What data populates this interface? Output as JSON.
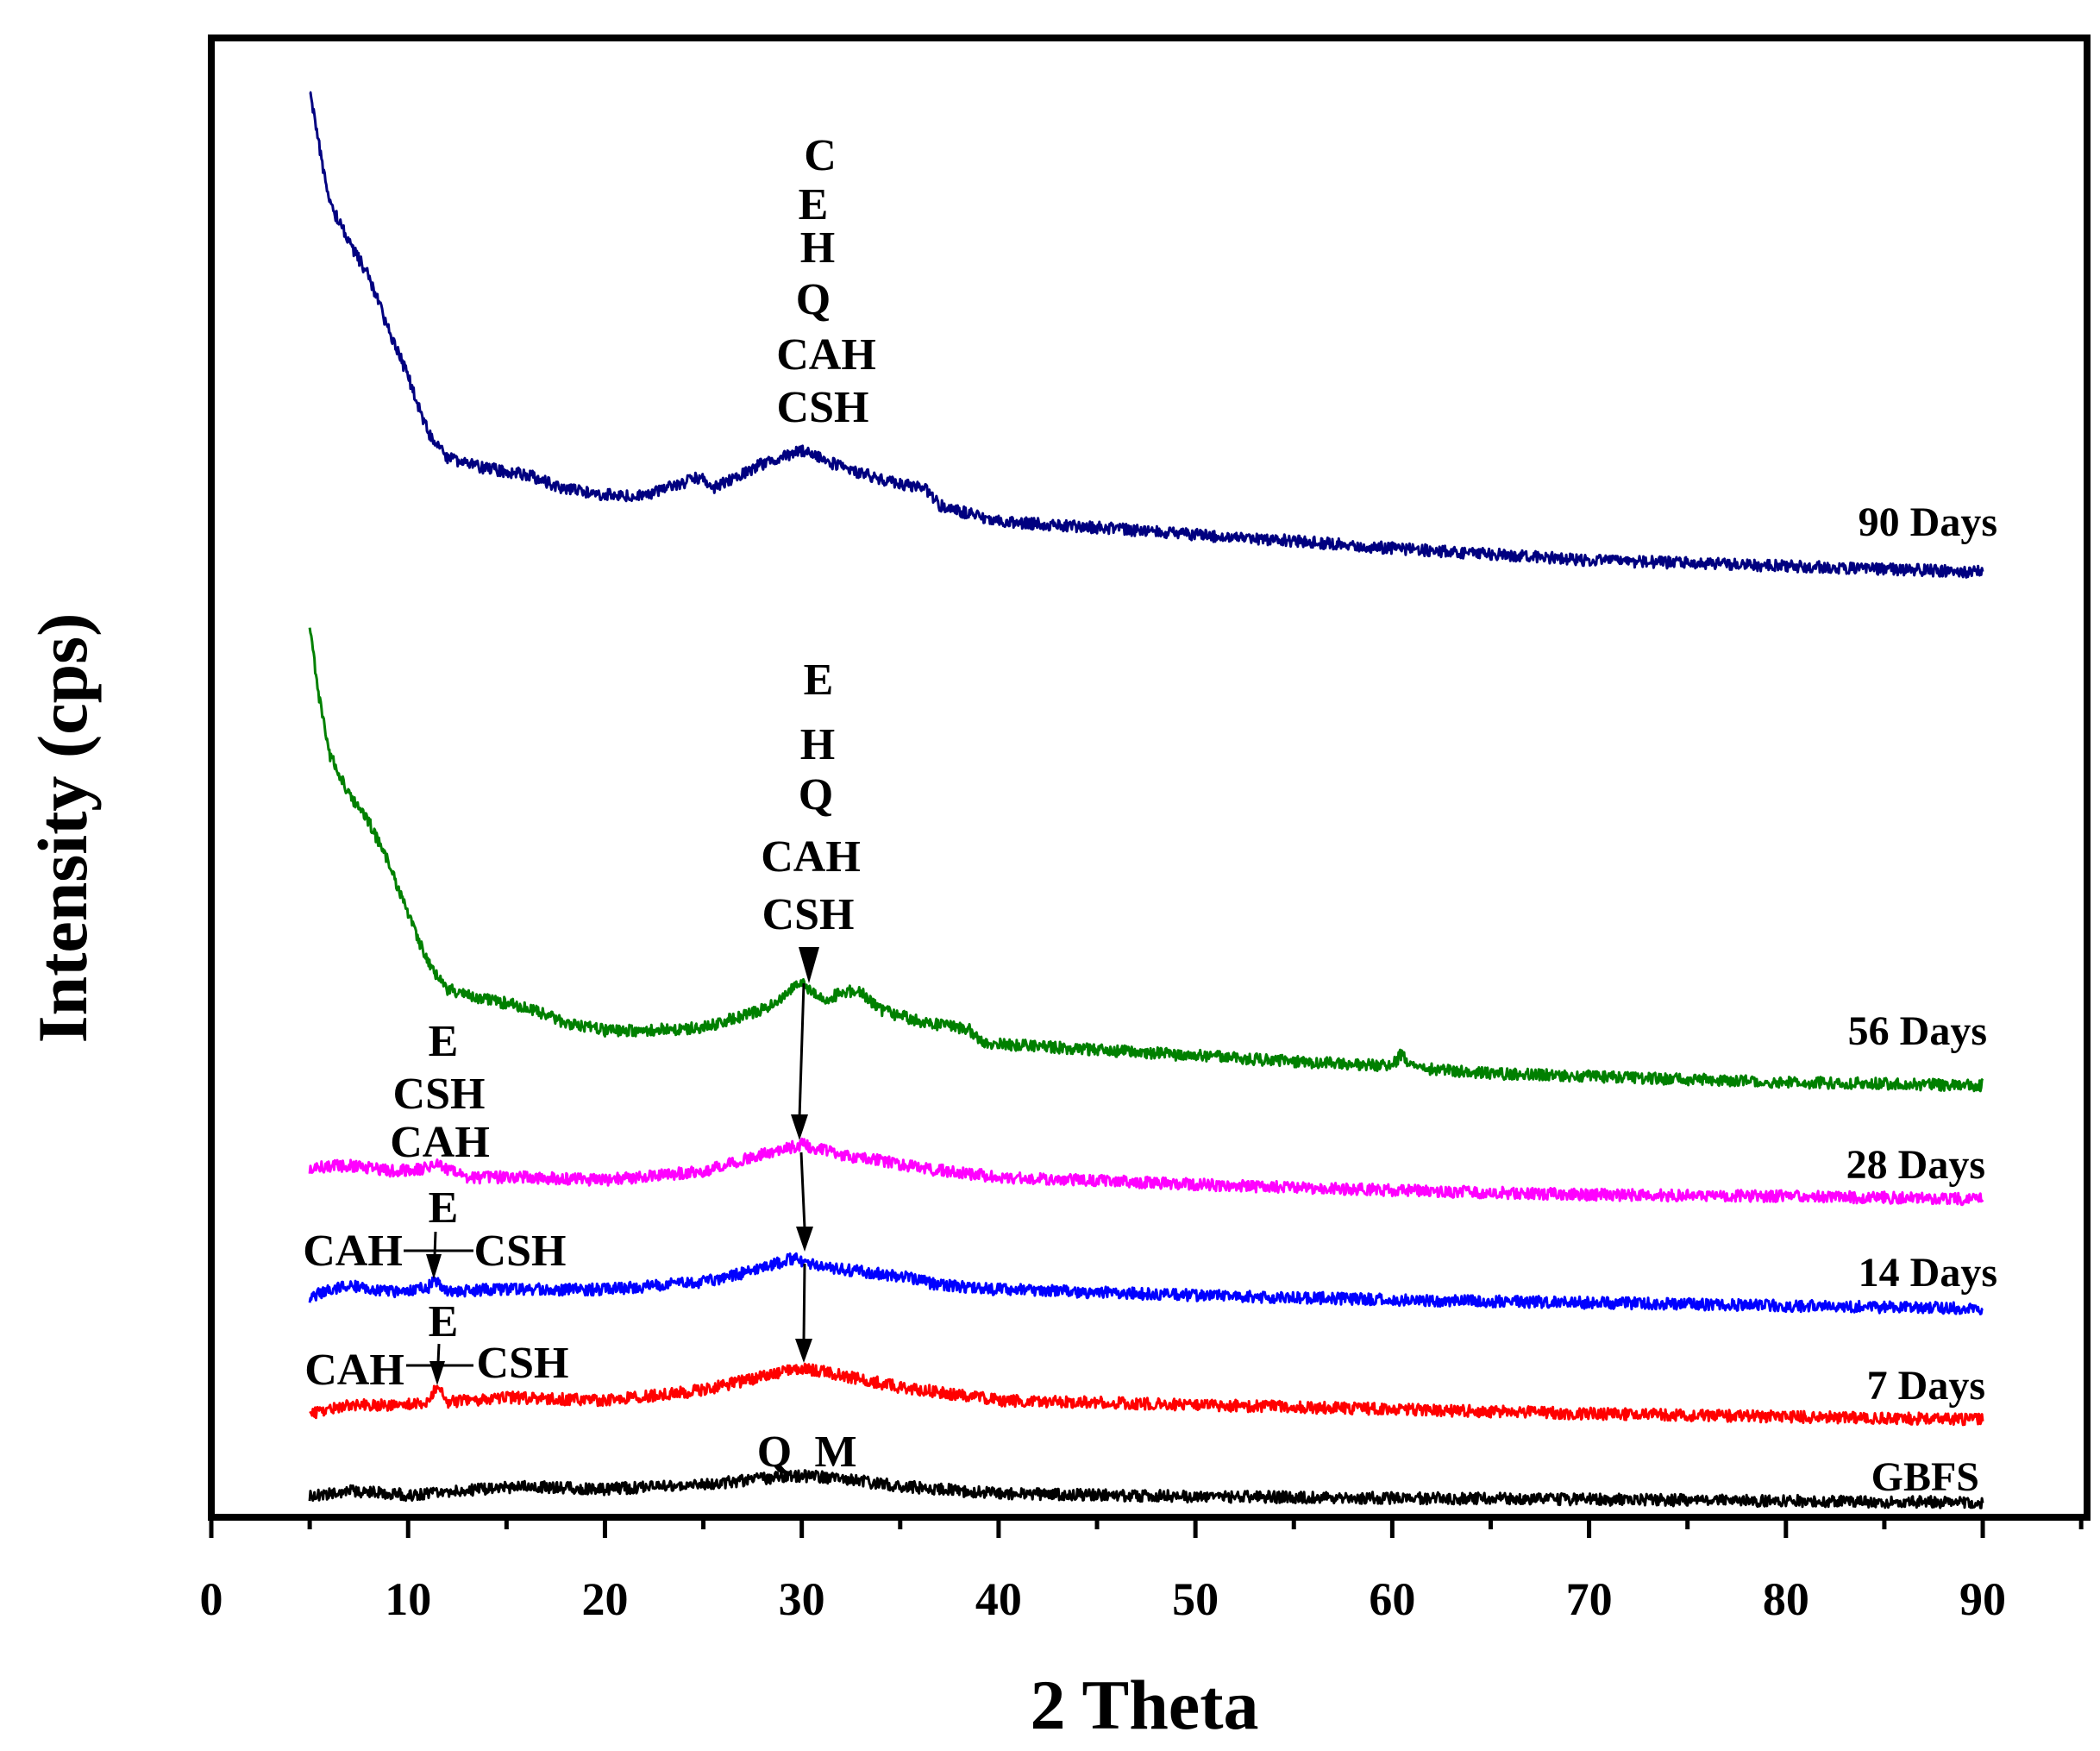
{
  "chart_data": {
    "type": "line",
    "title": "",
    "xlabel": "2 Theta",
    "ylabel": "Intensity (cps)",
    "xlim": [
      0,
      95.3
    ],
    "ylim": [
      0,
      100
    ],
    "xticks": [
      0,
      10,
      20,
      30,
      40,
      50,
      60,
      70,
      80,
      90
    ],
    "xtick_labels": [
      "0",
      "10",
      "20",
      "30",
      "40",
      "50",
      "60",
      "70",
      "80",
      "90"
    ],
    "xminor_step": 5,
    "grid": false,
    "series": [
      {
        "name": "GBFS",
        "color": "#000000",
        "x": [
          5,
          7,
          10,
          13,
          16,
          20,
          25,
          28,
          30,
          32,
          35,
          37,
          40,
          50,
          60,
          70,
          80,
          90
        ],
        "y": [
          1.4,
          1.8,
          1.5,
          1.8,
          2.1,
          1.9,
          2.2,
          2.6,
          2.8,
          2.6,
          2.1,
          1.9,
          1.6,
          1.4,
          1.3,
          1.2,
          1.1,
          1.0
        ]
      },
      {
        "name": "7 Days",
        "color": "#ff0000",
        "x": [
          5,
          7,
          9,
          11,
          11.5,
          12,
          15,
          20,
          23,
          25,
          28,
          30,
          32,
          35,
          40,
          50,
          60,
          70,
          80,
          90
        ],
        "y": [
          7.0,
          7.6,
          7.6,
          7.8,
          8.9,
          7.8,
          8.1,
          7.9,
          8.3,
          8.6,
          9.5,
          10.1,
          9.6,
          8.8,
          7.9,
          7.6,
          7.3,
          7.0,
          6.8,
          6.6
        ]
      },
      {
        "name": "14 Days",
        "color": "#0000ff",
        "x": [
          5,
          7,
          9,
          11,
          11.3,
          12,
          15,
          20,
          25,
          28,
          29.5,
          31,
          33,
          35,
          37,
          40,
          50,
          60,
          70,
          80,
          90
        ],
        "y": [
          14.9,
          15.7,
          15.2,
          15.5,
          16.0,
          15.3,
          15.4,
          15.4,
          15.9,
          16.8,
          17.5,
          17.0,
          16.6,
          16.3,
          15.7,
          15.4,
          15.0,
          14.7,
          14.5,
          14.3,
          14.1
        ]
      },
      {
        "name": "28 Days",
        "color": "#ff00ff",
        "x": [
          5,
          7,
          9,
          11,
          11.3,
          13,
          15,
          20,
          25,
          28,
          30,
          32,
          34,
          36,
          40,
          50,
          60,
          70,
          80,
          90
        ],
        "y": [
          23.6,
          23.8,
          23.4,
          23.6,
          24.0,
          22.9,
          23.0,
          22.8,
          23.4,
          24.5,
          25.2,
          24.5,
          24.1,
          23.6,
          23.0,
          22.5,
          22.1,
          21.8,
          21.7,
          21.5
        ]
      },
      {
        "name": "56 Days",
        "color": "#008000",
        "x": [
          5,
          5.5,
          6,
          7,
          8,
          9,
          10,
          11,
          12,
          14,
          16,
          18,
          20,
          22,
          25,
          28,
          30,
          31,
          32.8,
          34,
          36,
          38.5,
          39,
          40,
          45,
          50,
          55,
          60,
          60.5,
          61,
          65,
          70,
          80,
          90
        ],
        "y": [
          60.2,
          55.2,
          51.6,
          48.9,
          47.0,
          44.3,
          40.7,
          37.5,
          35.7,
          35.0,
          34.5,
          33.4,
          32.9,
          32.9,
          33.1,
          34.3,
          36.1,
          35.0,
          35.7,
          34.3,
          33.5,
          33.0,
          32.2,
          32.0,
          31.6,
          31.2,
          30.8,
          30.5,
          31.4,
          30.4,
          30.0,
          29.8,
          29.4,
          29.2
        ]
      },
      {
        "name": "90 Days",
        "color": "#000080",
        "x": [
          5,
          5.5,
          6,
          7,
          8,
          9,
          10,
          11,
          12,
          14,
          16,
          18,
          20,
          22,
          24.8,
          25.5,
          28,
          30,
          32,
          33,
          35,
          36.2,
          37,
          38,
          40,
          45,
          50,
          55,
          60,
          65,
          70,
          80,
          90
        ],
        "y": [
          96.4,
          92.5,
          88.9,
          86.2,
          83.9,
          80.3,
          77.1,
          73.4,
          71.6,
          70.9,
          70.5,
          69.5,
          69.1,
          69.1,
          70.3,
          69.6,
          71.2,
          72.1,
          71.0,
          70.6,
          69.8,
          69.6,
          68.4,
          68.0,
          67.3,
          66.9,
          66.4,
          66.0,
          65.5,
          65.1,
          64.7,
          64.3,
          63.9
        ]
      }
    ],
    "annotations": {
      "peak_90_days": [
        "C",
        "E",
        "H",
        "Q",
        "CAH",
        "CSH"
      ],
      "peak_56_days": [
        "E",
        "H",
        "Q",
        "CAH",
        "CSH"
      ],
      "low_28_days": [
        "E",
        "CSH",
        "CAH"
      ],
      "low_14_days": [
        "E",
        "CAH",
        "CSH"
      ],
      "low_7_days": [
        "E",
        "CAH",
        "CSH"
      ],
      "peak_gbfs": [
        "Q",
        "M"
      ]
    }
  }
}
